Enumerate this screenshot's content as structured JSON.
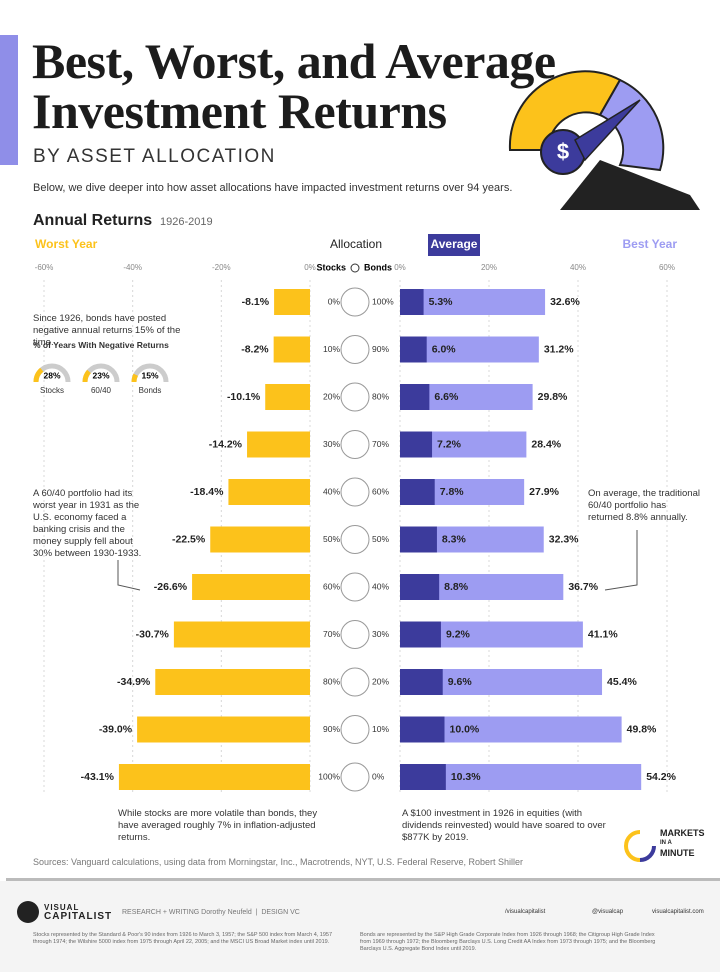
{
  "header": {
    "title_line1": "Best, Worst, and Average",
    "title_line2": "Investment Returns",
    "subtitle": "BY ASSET ALLOCATION",
    "description": "Below, we dive deeper into how asset allocations have impacted investment returns over 94 years."
  },
  "section": {
    "title": "Annual Returns",
    "period": "1926-2019"
  },
  "allocation": {
    "title": "Allocation",
    "stocks_label": "Stocks",
    "bonds_label": "Bonds"
  },
  "chart_data": [
    {
      "type": "bar",
      "orientation": "horizontal",
      "categories": [
        "0%",
        "10%",
        "20%",
        "30%",
        "40%",
        "50%",
        "60%",
        "70%",
        "80%",
        "90%",
        "100%"
      ],
      "xlim": [
        -60,
        0
      ],
      "xticks": [
        {
          "value": -60,
          "label": "-60%"
        },
        {
          "value": -40,
          "label": "-40%"
        },
        {
          "value": -20,
          "label": "-20%"
        },
        {
          "value": 0,
          "label": "0%"
        }
      ],
      "grid": true,
      "series": [
        {
          "name": "Worst Year",
          "color": "#fcc21b",
          "values": [
            -8.1,
            -8.2,
            -10.1,
            -14.2,
            -18.4,
            -22.5,
            -26.6,
            -30.7,
            -34.9,
            -39.0,
            -43.1
          ],
          "value_labels": [
            "-8.1%",
            "-8.2%",
            "-10.1%",
            "-14.2%",
            "-18.4%",
            "-22.5%",
            "-26.6%",
            "-30.7%",
            "-34.9%",
            "-39.0%",
            "-43.1%"
          ]
        }
      ]
    },
    {
      "type": "bar",
      "orientation": "horizontal",
      "categories": [
        "100%",
        "90%",
        "80%",
        "70%",
        "60%",
        "50%",
        "40%",
        "30%",
        "20%",
        "10%",
        "0%"
      ],
      "xlim": [
        0,
        60
      ],
      "xticks": [
        {
          "value": 0,
          "label": "0%"
        },
        {
          "value": 20,
          "label": "20%"
        },
        {
          "value": 40,
          "label": "40%"
        },
        {
          "value": 60,
          "label": "60%"
        }
      ],
      "grid": true,
      "series": [
        {
          "name": "Average",
          "color": "#3c3b9c",
          "values": [
            5.3,
            6.0,
            6.6,
            7.2,
            7.8,
            8.3,
            8.8,
            9.2,
            9.6,
            10.0,
            10.3
          ],
          "value_labels": [
            "5.3%",
            "6.0%",
            "6.6%",
            "7.2%",
            "7.8%",
            "8.3%",
            "8.8%",
            "9.2%",
            "9.6%",
            "10.0%",
            "10.3%"
          ]
        },
        {
          "name": "Best Year",
          "color": "#9d9cf2",
          "values": [
            32.6,
            31.2,
            29.8,
            28.4,
            27.9,
            32.3,
            36.7,
            41.1,
            45.4,
            49.8,
            54.2
          ],
          "value_labels": [
            "32.6%",
            "31.2%",
            "29.8%",
            "28.4%",
            "27.9%",
            "32.3%",
            "36.7%",
            "41.1%",
            "45.4%",
            "49.8%",
            "54.2%"
          ]
        }
      ]
    }
  ],
  "negative_returns": {
    "note": "Since 1926, bonds have posted negative annual returns 15% of the time.",
    "title": "% of Years With Negative Returns",
    "items": [
      {
        "label": "Stocks",
        "value": 28,
        "value_label": "28%"
      },
      {
        "label": "60/40",
        "value": 23,
        "value_label": "23%"
      },
      {
        "label": "Bonds",
        "value": 15,
        "value_label": "15%"
      }
    ]
  },
  "notes": {
    "worst_6040": "A 60/40 portfolio had its worst year in 1931 as the U.S. economy faced a banking crisis and the money supply fell about 30% between 1930-1933.",
    "average_6040": "On average, the traditional 60/40 portfolio has returned 8.8% annually.",
    "stocks_volatility": "While stocks are more volatile than bonds, they have averaged roughly 7% in inflation-adjusted returns.",
    "investment_100": "A $100 investment in 1926 in equities (with dividends reinvested) would have soared to over $877K by 2019."
  },
  "sources": "Sources: Vanguard calculations, using data from Morningstar, Inc., Macrotrends, NYT, U.S. Federal Reserve, Robert Shiller",
  "badge": {
    "line1": "MARKETS",
    "line2": "IN A",
    "line3": "MINUTE"
  },
  "footer": {
    "brand_line1": "VISUAL",
    "brand_line2": "CAPITALIST",
    "credits": "RESEARCH + WRITING Dorothy Neufeld  |  DESIGN VC",
    "social": [
      "/visualcapitalist",
      "@visualcap",
      "visualcapitalist.com"
    ],
    "stocks_footnote": "Stocks represented by the Standard & Poor's 90 index from 1926 to March 3, 1957; the S&P 500 index from March 4, 1957 through 1974; the Wilshire 5000 index from 1975 through April 22, 2005; and the MSCI US Broad Market index until 2019.",
    "bonds_footnote": "Bonds are represented by the S&P High Grade Corporate Index from 1926 through 1968; the Citigroup High Grade Index from 1969 through 1972; the Bloomberg Barclays U.S. Long Credit AA Index from 1973 through 1975; and the Bloomberg Barclays U.S. Aggregate Bond Index until 2019."
  }
}
